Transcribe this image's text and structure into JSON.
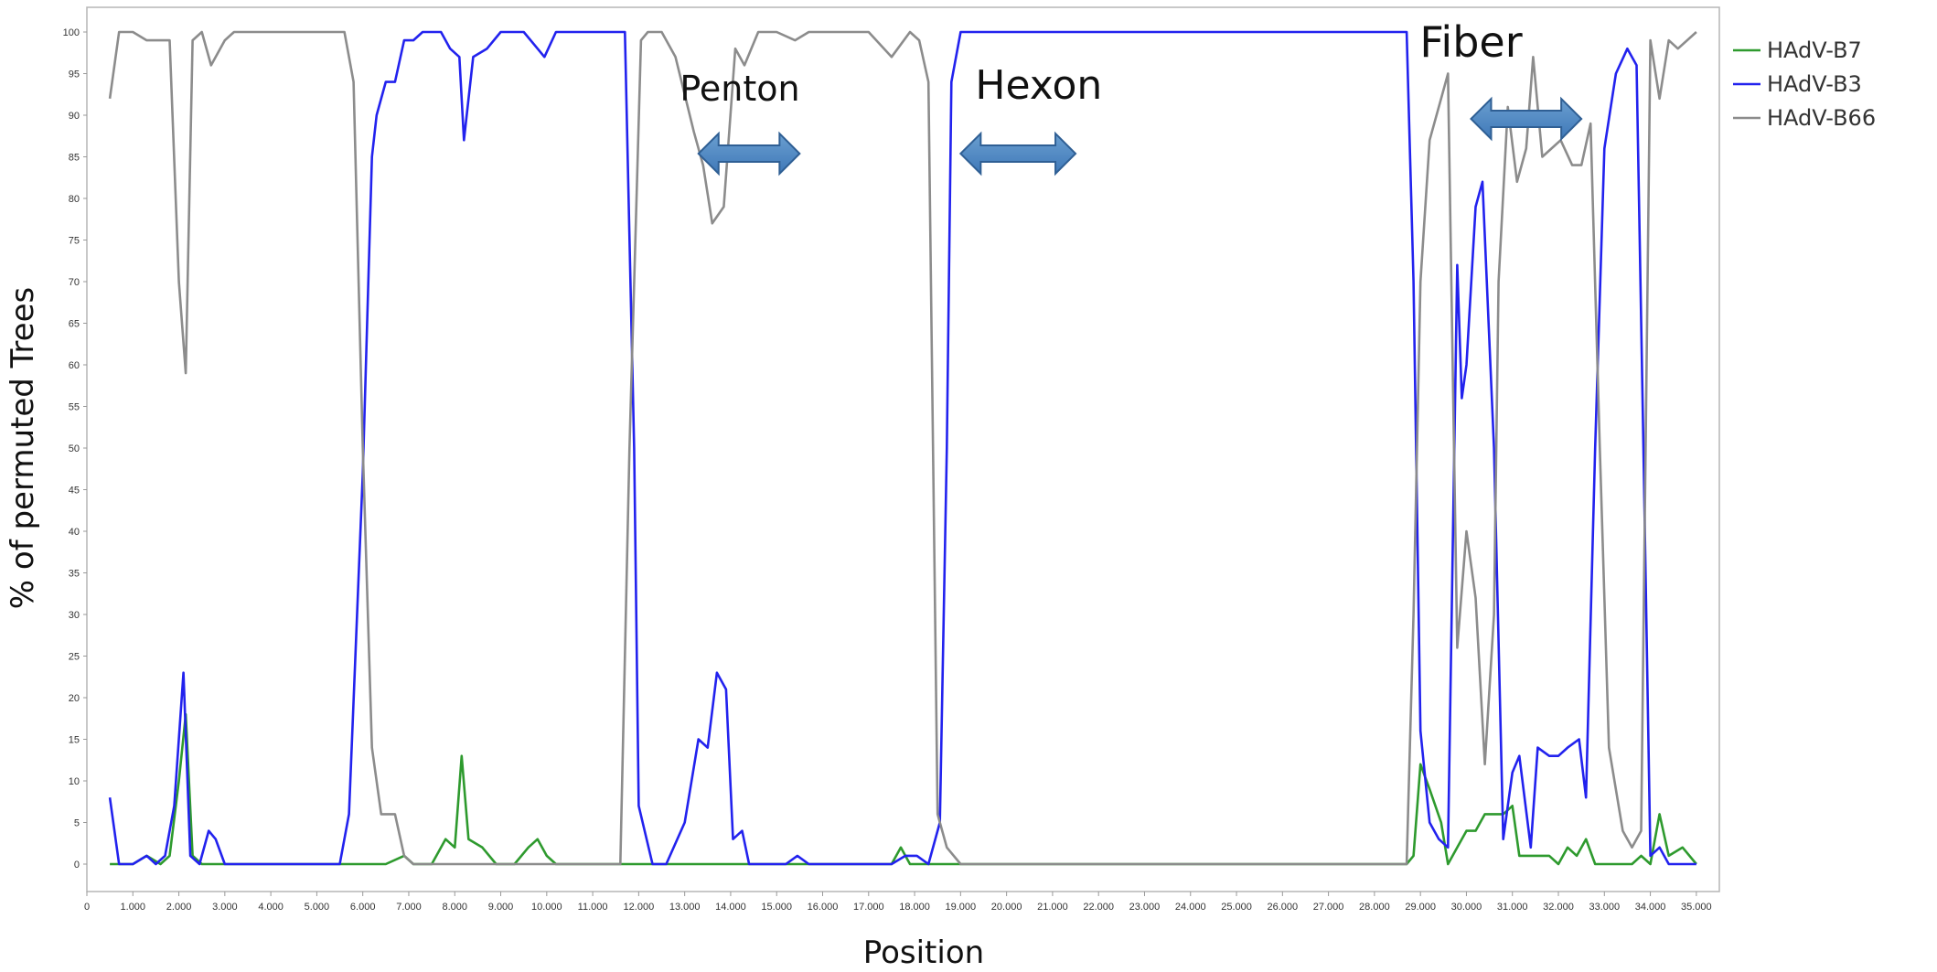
{
  "chart_data": {
    "type": "line",
    "title": "",
    "xlabel": "Position",
    "ylabel": "% of permuted Trees",
    "xlim": [
      0,
      35500
    ],
    "ylim": [
      0,
      100
    ],
    "x_ticks": [
      0,
      1000,
      2000,
      3000,
      4000,
      5000,
      6000,
      7000,
      8000,
      9000,
      10000,
      11000,
      12000,
      13000,
      14000,
      15000,
      16000,
      17000,
      18000,
      19000,
      20000,
      21000,
      22000,
      23000,
      24000,
      25000,
      26000,
      27000,
      28000,
      29000,
      30000,
      31000,
      32000,
      33000,
      34000,
      35000
    ],
    "x_tick_labels": [
      "0",
      "1.000",
      "2.000",
      "3.000",
      "4.000",
      "5.000",
      "6.000",
      "7.000",
      "8.000",
      "9.000",
      "10.000",
      "11.000",
      "12.000",
      "13.000",
      "14.000",
      "15.000",
      "16.000",
      "17.000",
      "18.000",
      "19.000",
      "20.000",
      "21.000",
      "22.000",
      "23.000",
      "24.000",
      "25.000",
      "26.000",
      "27.000",
      "28.000",
      "29.000",
      "30.000",
      "31.000",
      "32.000",
      "33.000",
      "34.000",
      "35.000"
    ],
    "y_ticks": [
      0,
      5,
      10,
      15,
      20,
      25,
      30,
      35,
      40,
      45,
      50,
      55,
      60,
      65,
      70,
      75,
      80,
      85,
      90,
      95,
      100
    ],
    "y_tick_labels": [
      "0",
      "5",
      "10",
      "15",
      "20",
      "25",
      "30",
      "35",
      "40",
      "45",
      "50",
      "55",
      "60",
      "65",
      "70",
      "75",
      "80",
      "85",
      "90",
      "95",
      "100"
    ],
    "grid": false,
    "legend_position": "right",
    "series": [
      {
        "name": "HAdV-B7",
        "color": "#2e9a2e",
        "points": [
          [
            500,
            0
          ],
          [
            1000,
            0
          ],
          [
            1300,
            1
          ],
          [
            1600,
            0
          ],
          [
            1800,
            1
          ],
          [
            2000,
            10
          ],
          [
            2150,
            18
          ],
          [
            2300,
            1
          ],
          [
            2500,
            0
          ],
          [
            3000,
            0
          ],
          [
            5000,
            0
          ],
          [
            6000,
            0
          ],
          [
            6500,
            0
          ],
          [
            6900,
            1
          ],
          [
            7100,
            0
          ],
          [
            7500,
            0
          ],
          [
            7800,
            3
          ],
          [
            8000,
            2
          ],
          [
            8150,
            13
          ],
          [
            8300,
            3
          ],
          [
            8600,
            2
          ],
          [
            8900,
            0
          ],
          [
            9300,
            0
          ],
          [
            9600,
            2
          ],
          [
            9800,
            3
          ],
          [
            10000,
            1
          ],
          [
            10200,
            0
          ],
          [
            11000,
            0
          ],
          [
            12000,
            0
          ],
          [
            13000,
            0
          ],
          [
            14000,
            0
          ],
          [
            15000,
            0
          ],
          [
            16000,
            0
          ],
          [
            17000,
            0
          ],
          [
            17500,
            0
          ],
          [
            17700,
            2
          ],
          [
            17900,
            0
          ],
          [
            18200,
            0
          ],
          [
            18500,
            0
          ],
          [
            19000,
            0
          ],
          [
            22000,
            0
          ],
          [
            25000,
            0
          ],
          [
            28000,
            0
          ],
          [
            28700,
            0
          ],
          [
            28850,
            1
          ],
          [
            29000,
            12
          ],
          [
            29200,
            9
          ],
          [
            29450,
            5
          ],
          [
            29600,
            0
          ],
          [
            29800,
            2
          ],
          [
            30000,
            4
          ],
          [
            30200,
            4
          ],
          [
            30400,
            6
          ],
          [
            30650,
            6
          ],
          [
            30800,
            6
          ],
          [
            31000,
            7
          ],
          [
            31150,
            1
          ],
          [
            31500,
            1
          ],
          [
            31800,
            1
          ],
          [
            32000,
            0
          ],
          [
            32200,
            2
          ],
          [
            32400,
            1
          ],
          [
            32600,
            3
          ],
          [
            32800,
            0
          ],
          [
            33200,
            0
          ],
          [
            33600,
            0
          ],
          [
            33800,
            1
          ],
          [
            34000,
            0
          ],
          [
            34200,
            6
          ],
          [
            34400,
            1
          ],
          [
            34700,
            2
          ],
          [
            35000,
            0
          ]
        ]
      },
      {
        "name": "HAdV-B3",
        "color": "#2222ee",
        "points": [
          [
            500,
            8
          ],
          [
            700,
            0
          ],
          [
            1000,
            0
          ],
          [
            1300,
            1
          ],
          [
            1500,
            0
          ],
          [
            1700,
            1
          ],
          [
            1900,
            7
          ],
          [
            2100,
            23
          ],
          [
            2250,
            1
          ],
          [
            2450,
            0
          ],
          [
            2650,
            4
          ],
          [
            2800,
            3
          ],
          [
            3000,
            0
          ],
          [
            4000,
            0
          ],
          [
            5000,
            0
          ],
          [
            5500,
            0
          ],
          [
            5700,
            6
          ],
          [
            6000,
            47
          ],
          [
            6200,
            85
          ],
          [
            6300,
            90
          ],
          [
            6500,
            94
          ],
          [
            6700,
            94
          ],
          [
            6900,
            99
          ],
          [
            7100,
            99
          ],
          [
            7300,
            100
          ],
          [
            7700,
            100
          ],
          [
            7900,
            98
          ],
          [
            8100,
            97
          ],
          [
            8200,
            87
          ],
          [
            8400,
            97
          ],
          [
            8700,
            98
          ],
          [
            9000,
            100
          ],
          [
            9500,
            100
          ],
          [
            9800,
            98
          ],
          [
            9950,
            97
          ],
          [
            10200,
            100
          ],
          [
            11500,
            100
          ],
          [
            11700,
            100
          ],
          [
            11900,
            50
          ],
          [
            12000,
            7
          ],
          [
            12300,
            0
          ],
          [
            12600,
            0
          ],
          [
            13000,
            5
          ],
          [
            13300,
            15
          ],
          [
            13500,
            14
          ],
          [
            13700,
            23
          ],
          [
            13900,
            21
          ],
          [
            14050,
            3
          ],
          [
            14250,
            4
          ],
          [
            14400,
            0
          ],
          [
            14800,
            0
          ],
          [
            15200,
            0
          ],
          [
            15450,
            1
          ],
          [
            15700,
            0
          ],
          [
            16000,
            0
          ],
          [
            17000,
            0
          ],
          [
            17500,
            0
          ],
          [
            17800,
            1
          ],
          [
            18050,
            1
          ],
          [
            18300,
            0
          ],
          [
            18550,
            5
          ],
          [
            18700,
            50
          ],
          [
            18800,
            94
          ],
          [
            19000,
            100
          ],
          [
            20000,
            100
          ],
          [
            25000,
            100
          ],
          [
            28000,
            100
          ],
          [
            28700,
            100
          ],
          [
            28850,
            70
          ],
          [
            29000,
            16
          ],
          [
            29200,
            5
          ],
          [
            29400,
            3
          ],
          [
            29600,
            2
          ],
          [
            29800,
            72
          ],
          [
            29900,
            56
          ],
          [
            30000,
            60
          ],
          [
            30200,
            79
          ],
          [
            30350,
            82
          ],
          [
            30600,
            50
          ],
          [
            30800,
            3
          ],
          [
            31000,
            11
          ],
          [
            31150,
            13
          ],
          [
            31400,
            2
          ],
          [
            31550,
            14
          ],
          [
            31800,
            13
          ],
          [
            32000,
            13
          ],
          [
            32200,
            14
          ],
          [
            32450,
            15
          ],
          [
            32600,
            8
          ],
          [
            32800,
            50
          ],
          [
            33000,
            86
          ],
          [
            33250,
            95
          ],
          [
            33500,
            98
          ],
          [
            33700,
            96
          ],
          [
            33850,
            50
          ],
          [
            34000,
            1
          ],
          [
            34200,
            2
          ],
          [
            34400,
            0
          ],
          [
            35000,
            0
          ]
        ]
      },
      {
        "name": "HAdV-B66",
        "color": "#8c8c8c",
        "points": [
          [
            500,
            92
          ],
          [
            700,
            100
          ],
          [
            1000,
            100
          ],
          [
            1300,
            99
          ],
          [
            1800,
            99
          ],
          [
            2000,
            70
          ],
          [
            2150,
            59
          ],
          [
            2300,
            99
          ],
          [
            2500,
            100
          ],
          [
            2700,
            96
          ],
          [
            3000,
            99
          ],
          [
            3200,
            100
          ],
          [
            5000,
            100
          ],
          [
            5600,
            100
          ],
          [
            5800,
            94
          ],
          [
            6000,
            50
          ],
          [
            6200,
            14
          ],
          [
            6400,
            6
          ],
          [
            6700,
            6
          ],
          [
            6900,
            1
          ],
          [
            7100,
            0
          ],
          [
            8000,
            0
          ],
          [
            9000,
            0
          ],
          [
            11000,
            0
          ],
          [
            11600,
            0
          ],
          [
            11800,
            50
          ],
          [
            12050,
            99
          ],
          [
            12200,
            100
          ],
          [
            12500,
            100
          ],
          [
            12800,
            97
          ],
          [
            13200,
            88
          ],
          [
            13400,
            84
          ],
          [
            13600,
            77
          ],
          [
            13850,
            79
          ],
          [
            14100,
            98
          ],
          [
            14300,
            96
          ],
          [
            14600,
            100
          ],
          [
            15000,
            100
          ],
          [
            15400,
            99
          ],
          [
            15700,
            100
          ],
          [
            16000,
            100
          ],
          [
            17000,
            100
          ],
          [
            17500,
            97
          ],
          [
            17900,
            100
          ],
          [
            18100,
            99
          ],
          [
            18300,
            94
          ],
          [
            18500,
            6
          ],
          [
            18700,
            2
          ],
          [
            19000,
            0
          ],
          [
            25000,
            0
          ],
          [
            28500,
            0
          ],
          [
            28700,
            0
          ],
          [
            28850,
            30
          ],
          [
            29000,
            70
          ],
          [
            29200,
            87
          ],
          [
            29450,
            92
          ],
          [
            29600,
            95
          ],
          [
            29800,
            26
          ],
          [
            30000,
            40
          ],
          [
            30200,
            32
          ],
          [
            30400,
            12
          ],
          [
            30600,
            30
          ],
          [
            30700,
            70
          ],
          [
            30900,
            91
          ],
          [
            31100,
            82
          ],
          [
            31300,
            86
          ],
          [
            31450,
            97
          ],
          [
            31650,
            85
          ],
          [
            31850,
            86
          ],
          [
            32050,
            87
          ],
          [
            32300,
            84
          ],
          [
            32500,
            84
          ],
          [
            32700,
            89
          ],
          [
            32900,
            50
          ],
          [
            33100,
            14
          ],
          [
            33400,
            4
          ],
          [
            33600,
            2
          ],
          [
            33800,
            4
          ],
          [
            34000,
            99
          ],
          [
            34200,
            92
          ],
          [
            34400,
            99
          ],
          [
            34600,
            98
          ],
          [
            35000,
            100
          ]
        ]
      }
    ],
    "annotations": [
      {
        "text": "Penton",
        "x": 14200,
        "y": 93,
        "arrow": [
          13300,
          15500
        ]
      },
      {
        "text": "Hexon",
        "x": 20700,
        "y": 93,
        "arrow": [
          19000,
          21500
        ]
      },
      {
        "text": "Fiber",
        "x": 30100,
        "y": 99,
        "arrow": [
          30100,
          32500
        ]
      }
    ]
  }
}
